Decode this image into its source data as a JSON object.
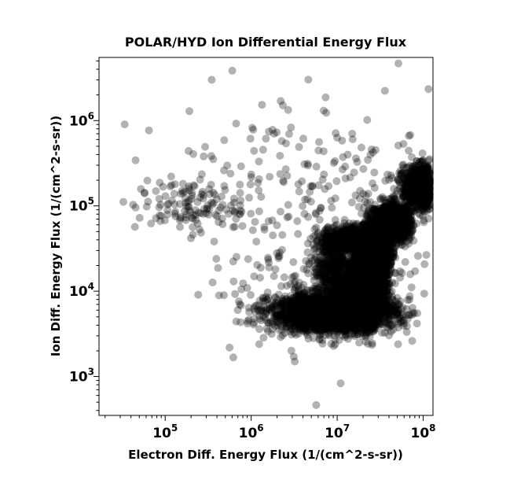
{
  "chart_data": {
    "type": "scatter",
    "title": "POLAR/HYD  Ion Differential Energy Flux",
    "xlabel": "Electron Diff. Energy Flux (1/(cm^2-s-sr))",
    "ylabel": "Ion Diff. Energy Flux (1/(cm^2-s-sr))",
    "xscale": "log",
    "yscale": "log",
    "xlim": [
      17000,
      130000000
    ],
    "ylim": [
      350,
      5500000
    ],
    "x_ticks": [
      {
        "value": 100000,
        "base": "10",
        "exp": "5"
      },
      {
        "value": 1000000,
        "base": "10",
        "exp": "6"
      },
      {
        "value": 10000000,
        "base": "10",
        "exp": "7"
      },
      {
        "value": 100000000,
        "base": "10",
        "exp": "8"
      }
    ],
    "y_ticks": [
      {
        "value": 1000,
        "base": "10",
        "exp": "3"
      },
      {
        "value": 10000,
        "base": "10",
        "exp": "4"
      },
      {
        "value": 100000,
        "base": "10",
        "exp": "5"
      },
      {
        "value": 1000000,
        "base": "10",
        "exp": "6"
      }
    ],
    "grid": false,
    "marker_color": "#000000",
    "marker_opacity": 0.3,
    "clusters": [
      {
        "cx": 8.35,
        "cy": 5.58,
        "sx": 0.07,
        "sy": 0.06,
        "n": 2200
      },
      {
        "cx": 8.05,
        "cy": 5.22,
        "sx": 0.14,
        "sy": 0.12,
        "n": 1600
      },
      {
        "cx": 7.65,
        "cy": 4.8,
        "sx": 0.1,
        "sy": 0.1,
        "n": 1200
      },
      {
        "cx": 7.45,
        "cy": 4.45,
        "sx": 0.08,
        "sy": 0.2,
        "n": 1600
      },
      {
        "cx": 7.35,
        "cy": 4.15,
        "sx": 0.09,
        "sy": 0.25,
        "n": 1800
      },
      {
        "cx": 6.95,
        "cy": 3.75,
        "sx": 0.36,
        "sy": 0.11,
        "n": 2400
      },
      {
        "cx": 7.25,
        "cy": 3.95,
        "sx": 0.12,
        "sy": 0.15,
        "n": 800
      },
      {
        "cx": 7.1,
        "cy": 4.6,
        "sx": 0.14,
        "sy": 0.08,
        "n": 500
      },
      {
        "cx": 6.95,
        "cy": 4.25,
        "sx": 0.12,
        "sy": 0.2,
        "n": 400
      },
      {
        "cx": 5.25,
        "cy": 5.0,
        "sx": 0.3,
        "sy": 0.15,
        "n": 120
      },
      {
        "cx": 7.2,
        "cy": 5.0,
        "sx": 0.8,
        "sy": 0.7,
        "n": 200
      },
      {
        "cx": 6.7,
        "cy": 4.2,
        "sx": 0.6,
        "sy": 0.5,
        "n": 160
      },
      {
        "cx": 6.0,
        "cy": 5.6,
        "sx": 0.5,
        "sy": 0.4,
        "n": 60
      }
    ]
  }
}
